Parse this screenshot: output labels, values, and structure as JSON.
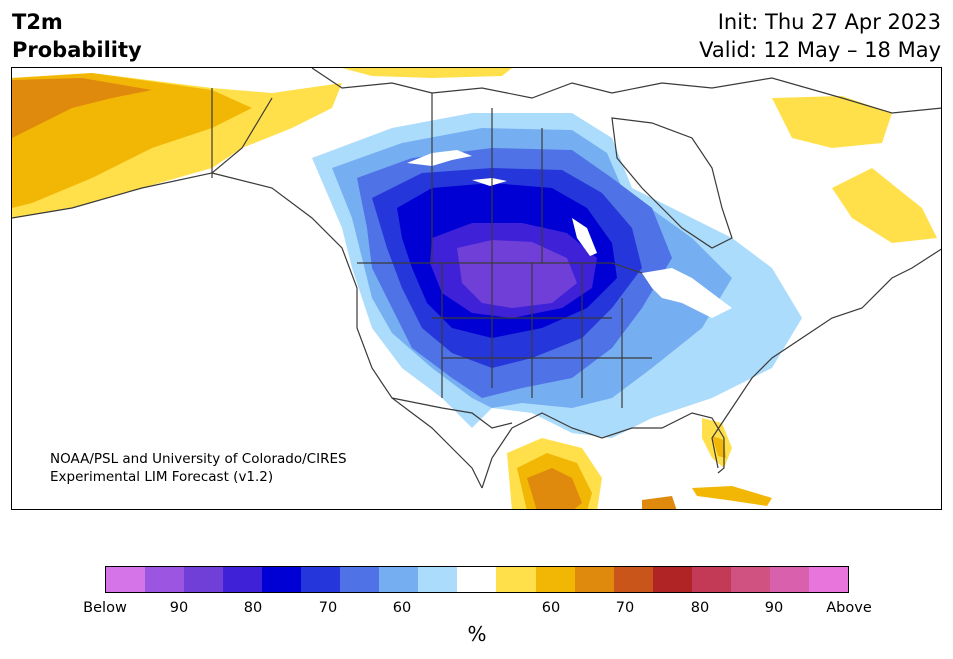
{
  "title": {
    "line1": "T2m",
    "line2": "Probability"
  },
  "init": "Init: Thu 27 Apr 2023",
  "valid": "Valid: 12 May – 18 May",
  "credit": {
    "line1": "NOAA/PSL and University of Colorado/CIRES",
    "line2": "Experimental LIM Forecast (v1.2)"
  },
  "colorbar": {
    "colors": [
      "#d474e8",
      "#9b55e0",
      "#6f3fd8",
      "#3f22d8",
      "#0000d4",
      "#2537da",
      "#4f72e6",
      "#76aef2",
      "#acdcfb",
      "#ffffff",
      "#ffe04a",
      "#f2b705",
      "#e08a0d",
      "#c9551a",
      "#b02426",
      "#c23a55",
      "#d05281",
      "#d960ad",
      "#e875dc"
    ],
    "tick_labels": [
      "Below",
      "90",
      "80",
      "70",
      "60",
      "60",
      "70",
      "80",
      "90",
      "Above"
    ],
    "unit": "%"
  },
  "map": {
    "region": "North America",
    "colors": {
      "below_60": "#acdcfb",
      "below_70": "#76aef2",
      "below_80": "#4f72e6",
      "below_90a": "#2537da",
      "below_90b": "#0000d4",
      "below_max1": "#3f22d8",
      "below_max2": "#6f3fd8",
      "above_60": "#ffe04a",
      "above_70": "#f2b705",
      "above_80": "#e08a0d",
      "above_90": "#c9551a",
      "outline": "#3a3a3a"
    }
  }
}
